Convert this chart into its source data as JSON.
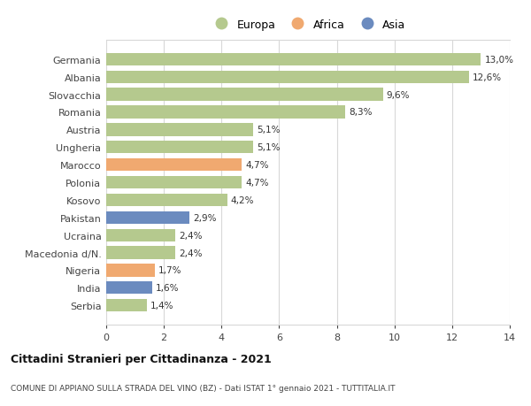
{
  "countries": [
    "Germania",
    "Albania",
    "Slovacchia",
    "Romania",
    "Austria",
    "Ungheria",
    "Marocco",
    "Polonia",
    "Kosovo",
    "Pakistan",
    "Ucraina",
    "Macedonia d/N.",
    "Nigeria",
    "India",
    "Serbia"
  ],
  "values": [
    13.0,
    12.6,
    9.6,
    8.3,
    5.1,
    5.1,
    4.7,
    4.7,
    4.2,
    2.9,
    2.4,
    2.4,
    1.7,
    1.6,
    1.4
  ],
  "labels": [
    "13,0%",
    "12,6%",
    "9,6%",
    "8,3%",
    "5,1%",
    "5,1%",
    "4,7%",
    "4,7%",
    "4,2%",
    "2,9%",
    "2,4%",
    "2,4%",
    "1,7%",
    "1,6%",
    "1,4%"
  ],
  "continents": [
    "Europa",
    "Europa",
    "Europa",
    "Europa",
    "Europa",
    "Europa",
    "Africa",
    "Europa",
    "Europa",
    "Asia",
    "Europa",
    "Europa",
    "Africa",
    "Asia",
    "Europa"
  ],
  "colors": {
    "Europa": "#b5c98e",
    "Africa": "#f0a970",
    "Asia": "#6b8bbf"
  },
  "title1": "Cittadini Stranieri per Cittadinanza - 2021",
  "title2": "COMUNE DI APPIANO SULLA STRADA DEL VINO (BZ) - Dati ISTAT 1° gennaio 2021 - TUTTITALIA.IT",
  "xlim": [
    0,
    14
  ],
  "xticks": [
    0,
    2,
    4,
    6,
    8,
    10,
    12,
    14
  ],
  "background_color": "#ffffff",
  "bar_height": 0.72,
  "grid_color": "#d8d8d8"
}
